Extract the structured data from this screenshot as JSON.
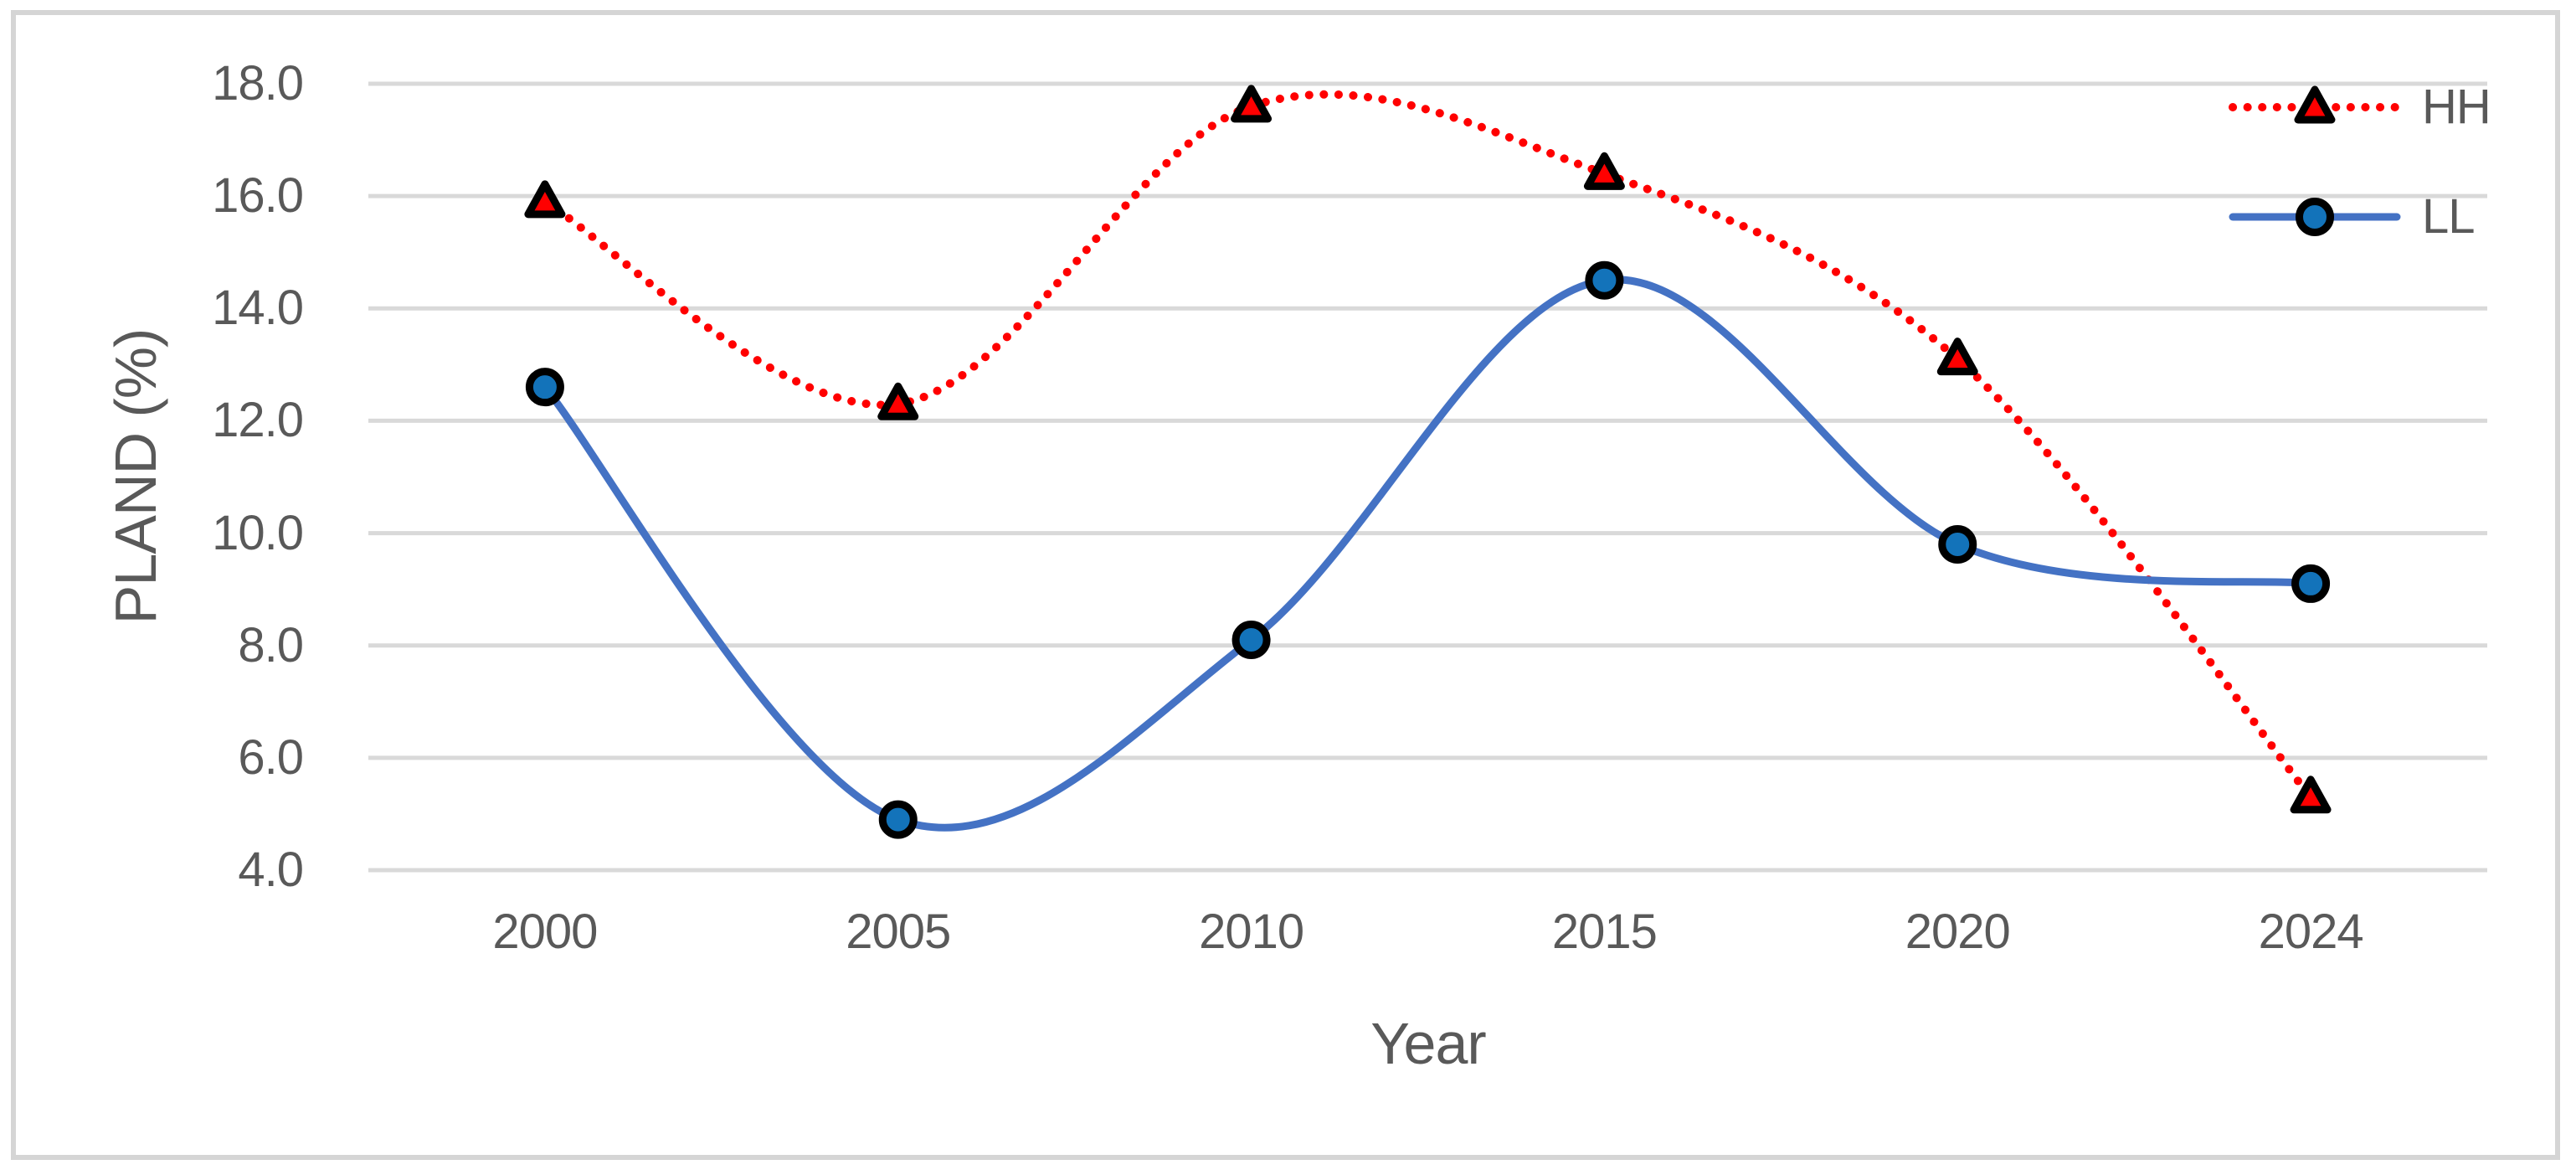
{
  "figure": {
    "background": "#FFFFFF",
    "border_color": "#D5D5D5"
  },
  "chart_data": {
    "type": "line",
    "title": "",
    "xlabel": "Year",
    "ylabel": "PLAND (%)",
    "categories": [
      "2000",
      "2005",
      "2010",
      "2015",
      "2020",
      "2024"
    ],
    "series": [
      {
        "name": "HH",
        "values": [
          15.9,
          12.3,
          17.6,
          16.4,
          13.1,
          5.3
        ],
        "color": "#FF0000",
        "line_style": "dotted",
        "marker": "triangle",
        "marker_fill": "#FF0000",
        "marker_stroke": "#000000"
      },
      {
        "name": "LL",
        "values": [
          12.6,
          4.9,
          8.1,
          14.5,
          9.8,
          9.1
        ],
        "color": "#4472C4",
        "line_style": "solid",
        "marker": "circle",
        "marker_fill": "#1373BA",
        "marker_stroke": "#000000"
      }
    ],
    "ylim": [
      4.0,
      18.0
    ],
    "ytick_step": 2.0,
    "ytick_labels": [
      "4.0",
      "6.0",
      "8.0",
      "10.0",
      "12.0",
      "14.0",
      "16.0",
      "18.0"
    ],
    "grid": "horizontal",
    "gridline_color": "#D9D9D9",
    "text_color": "#595959",
    "legend_position": "top-right",
    "smooth_lines": true
  }
}
